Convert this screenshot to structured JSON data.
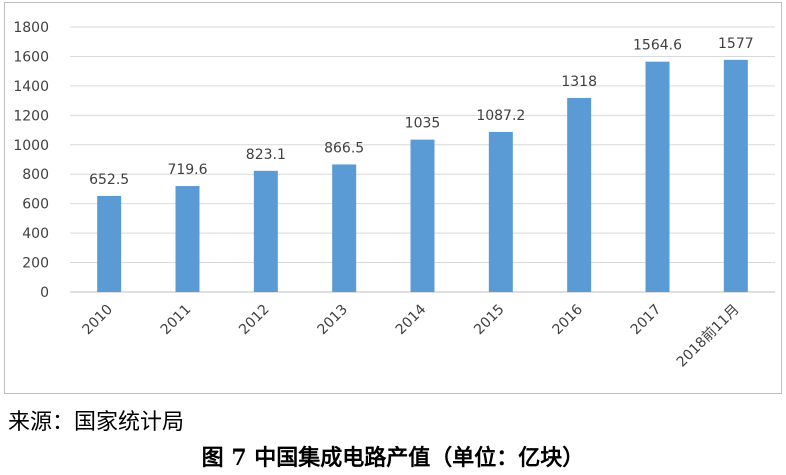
{
  "chart_data": {
    "type": "bar",
    "categories": [
      "2010",
      "2011",
      "2012",
      "2013",
      "2014",
      "2015",
      "2016",
      "2017",
      "2018前11月"
    ],
    "values": [
      652.5,
      719.6,
      823.1,
      866.5,
      1035,
      1087.2,
      1318,
      1564.6,
      1577
    ],
    "data_labels": [
      "652.5",
      "719.6",
      "823.1",
      "866.5",
      "1035",
      "1087.2",
      "1318",
      "1564.6",
      "1577"
    ],
    "ylim": [
      0,
      1800
    ],
    "y_ticks": [
      "0",
      "200",
      "400",
      "600",
      "800",
      "1000",
      "1200",
      "1400",
      "1600",
      "1800"
    ],
    "grid": true,
    "legend": "none",
    "bar_color": "#5b9bd5",
    "grid_color": "#d9d9d9",
    "axis_color": "#bfbfbf"
  },
  "source": "来源：国家统计局",
  "caption": "图 7  中国集成电路产值（单位：亿块）"
}
